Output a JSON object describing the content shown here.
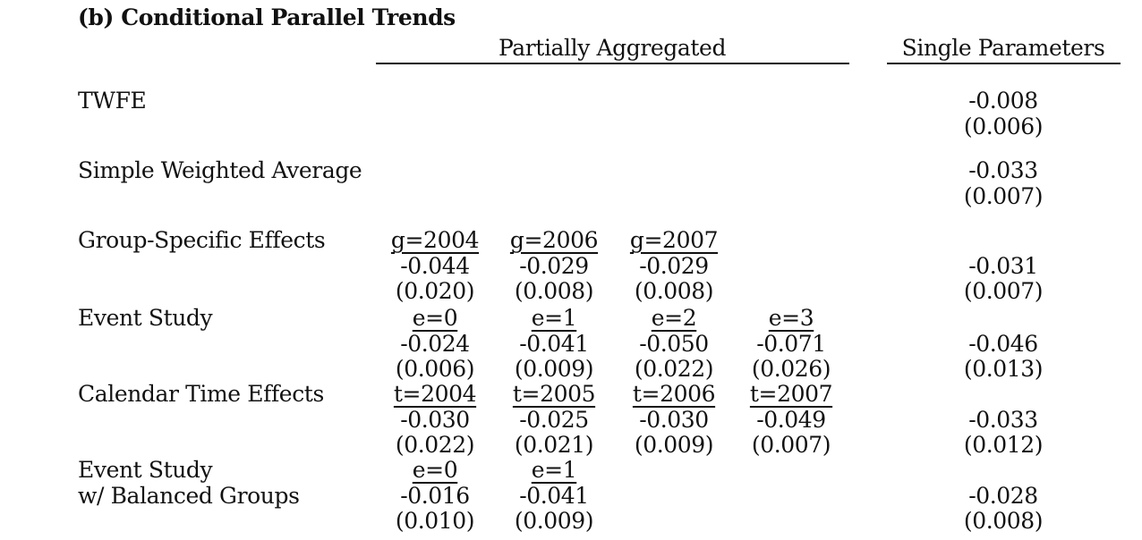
{
  "panel_title": "(b) Conditional Parallel Trends",
  "headers": {
    "partially_aggregated": "Partially Aggregated",
    "single_parameters": "Single Parameters"
  },
  "rows": [
    {
      "label": [
        "TWFE"
      ],
      "subheaders": [],
      "estimates": [],
      "std_errors": [],
      "single_estimate": "-0.008",
      "single_se": "(0.006)"
    },
    {
      "label": [
        "Simple Weighted Average"
      ],
      "subheaders": [],
      "estimates": [],
      "std_errors": [],
      "single_estimate": "-0.033",
      "single_se": "(0.007)"
    },
    {
      "label": [
        "Group-Specific Effects"
      ],
      "subheaders": [
        "g=2004",
        "g=2006",
        "g=2007"
      ],
      "estimates": [
        "-0.044",
        "-0.029",
        "-0.029"
      ],
      "std_errors": [
        "(0.020)",
        "(0.008)",
        "(0.008)"
      ],
      "single_estimate": "-0.031",
      "single_se": "(0.007)"
    },
    {
      "label": [
        "Event Study"
      ],
      "subheaders": [
        "e=0",
        "e=1",
        "e=2",
        "e=3"
      ],
      "estimates": [
        "-0.024",
        "-0.041",
        "-0.050",
        "-0.071"
      ],
      "std_errors": [
        "(0.006)",
        "(0.009)",
        "(0.022)",
        "(0.026)"
      ],
      "single_estimate": "-0.046",
      "single_se": "(0.013)"
    },
    {
      "label": [
        "Calendar Time Effects"
      ],
      "subheaders": [
        "t=2004",
        "t=2005",
        "t=2006",
        "t=2007"
      ],
      "estimates": [
        "-0.030",
        "-0.025",
        "-0.030",
        "-0.049"
      ],
      "std_errors": [
        "(0.022)",
        "(0.021)",
        "(0.009)",
        "(0.007)"
      ],
      "single_estimate": "-0.033",
      "single_se": "(0.012)"
    },
    {
      "label": [
        "Event Study",
        "w/ Balanced Groups"
      ],
      "subheaders": [
        "e=0",
        "e=1"
      ],
      "estimates": [
        "-0.016",
        "-0.041"
      ],
      "std_errors": [
        "(0.010)",
        "(0.009)"
      ],
      "single_estimate": "-0.028",
      "single_se": "(0.008)"
    }
  ]
}
